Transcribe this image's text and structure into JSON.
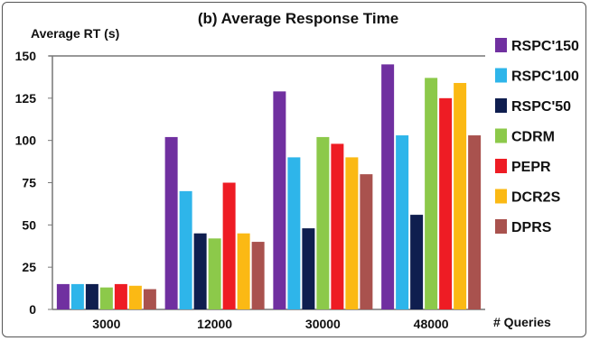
{
  "chart_data": {
    "type": "bar",
    "title": "(b) Average Response Time",
    "ylabel": "Average RT (s)",
    "xlabel": "# Queries",
    "categories": [
      "3000",
      "12000",
      "30000",
      "48000"
    ],
    "ylim": [
      0,
      150
    ],
    "yticks": [
      "0",
      "25",
      "50",
      "75",
      "100",
      "125",
      "150"
    ],
    "grid": false,
    "legend": "right",
    "series": [
      {
        "name": "RSPC'150",
        "color": "#7030a0",
        "values": [
          15,
          102,
          129,
          145
        ]
      },
      {
        "name": "RSPC'100",
        "color": "#2eb5ea",
        "values": [
          15,
          70,
          90,
          103
        ]
      },
      {
        "name": "RSPC'50",
        "color": "#0f1e4f",
        "values": [
          15,
          45,
          48,
          56
        ]
      },
      {
        "name": "CDRM",
        "color": "#8cc94a",
        "values": [
          13,
          42,
          102,
          137
        ]
      },
      {
        "name": "PEPR",
        "color": "#ee1c24",
        "values": [
          15,
          75,
          98,
          125
        ]
      },
      {
        "name": "DCR2S",
        "color": "#fbb914",
        "values": [
          14,
          45,
          90,
          134
        ]
      },
      {
        "name": "DPRS",
        "color": "#a9524e",
        "values": [
          12,
          40,
          80,
          103
        ]
      }
    ]
  }
}
